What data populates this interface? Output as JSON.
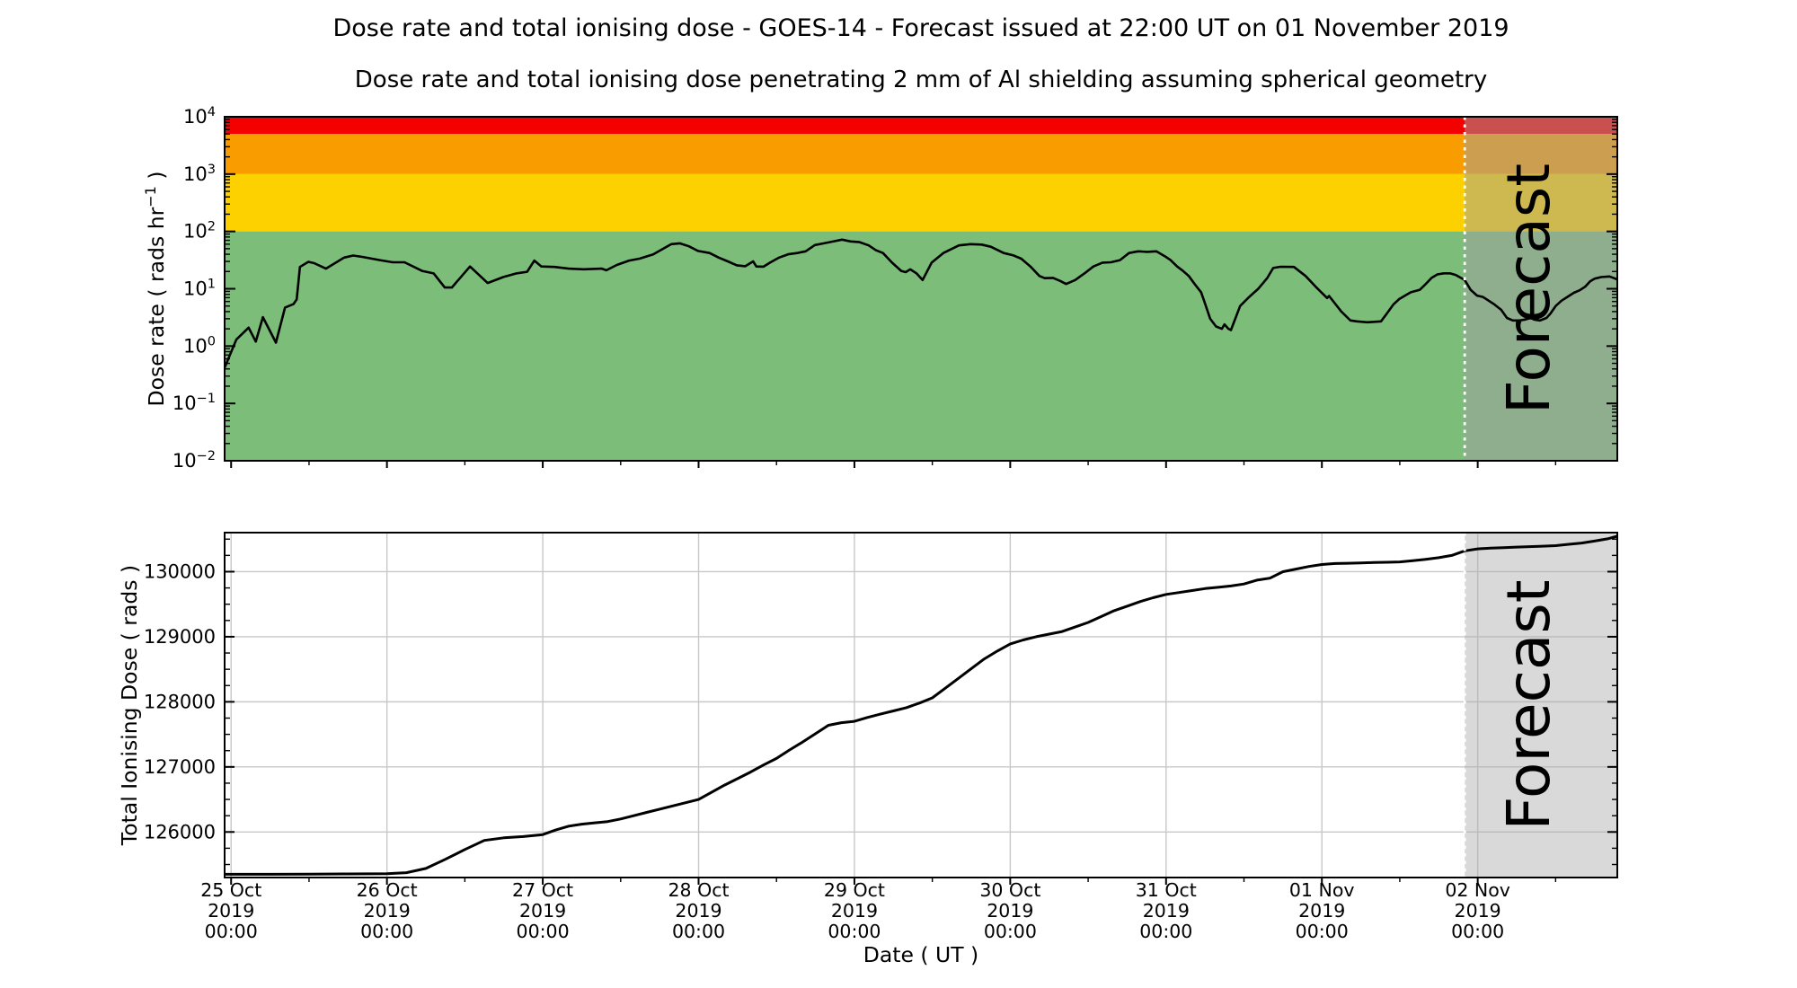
{
  "title": "Dose rate and total ionising dose - GOES-14 - Forecast issued at 22:00 UT on 01 November 2019",
  "subtitle": "Dose rate and total ionising dose penetrating 2 mm of Al shielding assuming spherical geometry",
  "forecast": {
    "label": "Forecast",
    "start_hours": 190,
    "issued_at": "22:00 UT on 01 November 2019"
  },
  "x_axis": {
    "label": "Date ( UT )",
    "hours_reference": "hours after 25 Oct 2019 00:00 UT",
    "range_hours": [
      -1,
      213.5
    ],
    "major_tick_hours": [
      0,
      24,
      48,
      72,
      96,
      120,
      144,
      168,
      192
    ],
    "major_tick_labels": [
      [
        "25 Oct",
        "2019",
        "00:00"
      ],
      [
        "26 Oct",
        "2019",
        "00:00"
      ],
      [
        "27 Oct",
        "2019",
        "00:00"
      ],
      [
        "28 Oct",
        "2019",
        "00:00"
      ],
      [
        "29 Oct",
        "2019",
        "00:00"
      ],
      [
        "30 Oct",
        "2019",
        "00:00"
      ],
      [
        "31 Oct",
        "2019",
        "00:00"
      ],
      [
        "01 Nov",
        "2019",
        "00:00"
      ],
      [
        "02 Nov",
        "2019",
        "00:00"
      ]
    ]
  },
  "chart_data": [
    {
      "type": "line",
      "name": "dose-rate",
      "ylabel": {
        "text": "Dose rate ( rads hr",
        "sup": "−1",
        "end": " )"
      },
      "yscale": "log",
      "ylim": [
        0.01,
        10000
      ],
      "ytick_exponents": [
        4,
        3,
        2,
        1,
        0,
        -1,
        -2
      ],
      "grid": false,
      "legend": "none",
      "line_color": "#000000",
      "bands": [
        {
          "name": "red",
          "range": [
            5000,
            10000
          ],
          "color": "#f40000"
        },
        {
          "name": "orange",
          "range": [
            1000,
            5000
          ],
          "color": "#f89c00"
        },
        {
          "name": "yellow",
          "range": [
            100,
            1000
          ],
          "color": "#fdd000"
        },
        {
          "name": "green",
          "range": [
            0.01,
            100
          ],
          "color": "#7cbd7a"
        }
      ],
      "x_hours": [
        -1,
        0.8,
        2.7,
        3.8,
        4.9,
        6.9,
        8.3,
        9.6,
        10.1,
        10.6,
        11.9,
        12.8,
        14.6,
        17.4,
        18.8,
        20.2,
        22.9,
        24.9,
        26.7,
        29.4,
        31.2,
        32.9,
        34,
        36.8,
        39.5,
        41.9,
        44,
        45.6,
        46.7,
        47.8,
        49.8,
        52,
        54.3,
        57.1,
        57.8,
        59.4,
        61.3,
        62.9,
        65,
        67.8,
        69.1,
        70.5,
        71.9,
        73.7,
        75.1,
        76.5,
        77.9,
        79.2,
        80.4,
        80.9,
        82,
        83,
        84.4,
        85.8,
        87.2,
        88.5,
        89.9,
        91.3,
        92.7,
        94.1,
        95.4,
        96.8,
        98.2,
        99.3,
        100.4,
        101.8,
        103.2,
        103.9,
        104.6,
        105.6,
        106.5,
        107.9,
        109.7,
        112.1,
        113.9,
        115.6,
        117,
        119,
        120.4,
        121.7,
        123.1,
        124.5,
        125.3,
        126.6,
        127.7,
        128.6,
        130,
        131.4,
        132.8,
        134.2,
        135.5,
        136.9,
        138.3,
        139.7,
        141.1,
        142.5,
        143.8,
        144.7,
        145.7,
        146.6,
        147.5,
        148.4,
        149.4,
        149.9,
        150.8,
        151.7,
        152.6,
        153,
        153.6,
        154,
        155.4,
        156.8,
        158.2,
        159.6,
        160.5,
        161.6,
        163.7,
        165.5,
        167,
        168.8,
        169.1,
        171,
        172.4,
        173.4,
        175,
        177.1,
        178,
        179,
        179.9,
        180.8,
        181.7,
        183.1,
        184,
        184.9,
        185.8,
        186.8,
        187.7,
        188.6,
        190,
        190.9,
        191.9,
        192.8,
        193.7,
        194.6,
        195.6,
        196.5,
        197.4,
        198.4,
        199.3,
        200.2,
        200.7,
        201.6,
        202.6,
        203.2,
        204,
        204.9,
        205.8,
        206.8,
        207.7,
        208.6,
        209.3,
        210,
        211,
        212.3,
        213,
        213.5
      ],
      "values": [
        0.42,
        1.3,
        2.1,
        1.2,
        3.2,
        1.15,
        4.7,
        5.4,
        6.5,
        24,
        29.5,
        28,
        22.4,
        35,
        38,
        36,
        31.6,
        29,
        29,
        20.5,
        18.5,
        10.5,
        10.5,
        24.5,
        12.6,
        16,
        18.6,
        19.8,
        31,
        24.5,
        24,
        22.4,
        21.9,
        22.4,
        21,
        26,
        31,
        33.5,
        39.8,
        60,
        62,
        55,
        45.6,
        42,
        35,
        30,
        25.6,
        24.7,
        30,
        24.5,
        24.3,
        28.6,
        35,
        40,
        42,
        45,
        58,
        62,
        66.8,
        72,
        67,
        65,
        57,
        47,
        42,
        28.6,
        20.5,
        19.5,
        21.9,
        18.4,
        14.2,
        28.6,
        42,
        57,
        60,
        59,
        54,
        42,
        38.5,
        33.5,
        24.5,
        16.7,
        15.3,
        15.5,
        13.7,
        12.1,
        14.2,
        18.4,
        24.5,
        28.6,
        29,
        31.6,
        42,
        45,
        44,
        45,
        37,
        31.6,
        24.5,
        20.5,
        16.7,
        12.1,
        8.7,
        6,
        3,
        2.2,
        2,
        2.4,
        2,
        1.9,
        5,
        7.2,
        10,
        15.5,
        23,
        24.2,
        24,
        16.7,
        11,
        6.9,
        7.5,
        4,
        2.8,
        2.7,
        2.6,
        2.7,
        3.7,
        5.3,
        6.6,
        7.6,
        8.7,
        9.6,
        12.1,
        15.5,
        17.8,
        18.6,
        18.6,
        17.4,
        14.2,
        9.6,
        7.6,
        7.2,
        6.2,
        5.3,
        4.3,
        3.1,
        2.8,
        2.8,
        2.9,
        3.1,
        2.9,
        2.8,
        3.1,
        3.7,
        5,
        6.2,
        7.2,
        8.5,
        9.4,
        11,
        13.5,
        15,
        16,
        16.4,
        15.3,
        14.5
      ]
    },
    {
      "type": "line",
      "name": "total-ionising-dose",
      "ylabel": {
        "text": "Total Ionising Dose ( rads )"
      },
      "yscale": "linear",
      "ylim": [
        125300,
        130600
      ],
      "yticks": [
        126000,
        127000,
        128000,
        129000,
        130000
      ],
      "grid": true,
      "legend": "none",
      "line_color": "#000000",
      "x_hours": [
        -1,
        6,
        12,
        18,
        24,
        27,
        30,
        33,
        36,
        39,
        42,
        45,
        48,
        50,
        52,
        54,
        56,
        58,
        60,
        62,
        64,
        66,
        68,
        70,
        72,
        74,
        76,
        78,
        80,
        82,
        84,
        86,
        88,
        90,
        92,
        94,
        96,
        98,
        100,
        102,
        104,
        106,
        108,
        110,
        112,
        114,
        116,
        118,
        120,
        122,
        124,
        126,
        128,
        130,
        132,
        134,
        136,
        138,
        140,
        142,
        144,
        146,
        148,
        150,
        152,
        154,
        156,
        158,
        160,
        162,
        164,
        166,
        168,
        170,
        172,
        174,
        176,
        178,
        180,
        182,
        184,
        186,
        188,
        190,
        192,
        194,
        196,
        198,
        200,
        202,
        204,
        206,
        208,
        210,
        212,
        213.5
      ],
      "values": [
        125350,
        125350,
        125352,
        125355,
        125360,
        125375,
        125440,
        125580,
        125730,
        125870,
        125910,
        125930,
        125960,
        126030,
        126090,
        126120,
        126140,
        126160,
        126200,
        126250,
        126300,
        126350,
        126400,
        126450,
        126500,
        126610,
        126720,
        126820,
        126920,
        127030,
        127130,
        127260,
        127380,
        127510,
        127640,
        127680,
        127700,
        127760,
        127810,
        127860,
        127910,
        127980,
        128060,
        128210,
        128360,
        128510,
        128660,
        128780,
        128890,
        128950,
        129000,
        129040,
        129080,
        129150,
        129220,
        129310,
        129400,
        129470,
        129540,
        129600,
        129650,
        129680,
        129710,
        129740,
        129760,
        129780,
        129810,
        129870,
        129900,
        130000,
        130040,
        130080,
        130110,
        130125,
        130130,
        130135,
        130140,
        130145,
        130150,
        130170,
        130190,
        130215,
        130250,
        130320,
        130350,
        130362,
        130370,
        130378,
        130385,
        130392,
        130400,
        130420,
        130440,
        130470,
        130505,
        130545
      ]
    }
  ],
  "colors": {
    "forecast_overlay_top": "rgba(160,160,160,0.5)",
    "forecast_overlay_bottom": "rgba(170,170,170,0.45)",
    "forecast_divider": "#ffffff",
    "watermark": "rgba(90,90,90,0.42)",
    "grid": "#c8c8c8",
    "spine": "#000000"
  }
}
